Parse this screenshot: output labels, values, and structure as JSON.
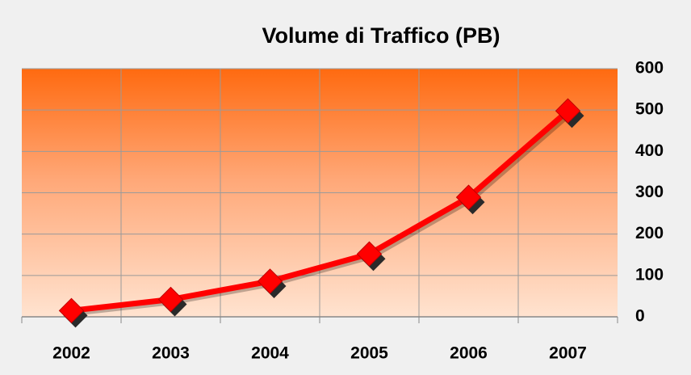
{
  "chart_data": {
    "type": "line",
    "title": "Volume di Traffico (PB)",
    "categories": [
      "2002",
      "2003",
      "2004",
      "2005",
      "2006",
      "2007"
    ],
    "series": [
      {
        "name": "Volume di Traffico (PB)",
        "color": "#ff0000",
        "values": [
          15,
          42,
          86,
          152,
          289,
          498
        ]
      }
    ],
    "ylim": [
      0,
      600
    ],
    "yticks": [
      0,
      100,
      200,
      300,
      400,
      500,
      600
    ],
    "grid": true,
    "y_axis_side": "right"
  }
}
